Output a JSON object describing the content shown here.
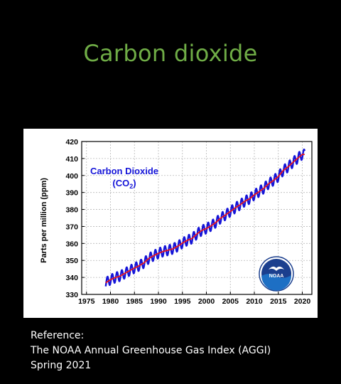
{
  "slide": {
    "title": "Carbon dioxide",
    "reference": {
      "line1": "Reference:",
      "line2": "The NOAA Annual Greenhouse Gas Index (AGGI)",
      "line3": "Spring 2021"
    }
  },
  "logo": {
    "text": "NOAA"
  },
  "chart_data": {
    "type": "line",
    "title": "Carbon Dioxide",
    "subtitle": "(CO",
    "subtitle_sub": "2",
    "subtitle_end": ")",
    "xlabel": "",
    "ylabel": "Parts per million (ppm)",
    "xlim": [
      1974,
      2022
    ],
    "ylim": [
      330,
      420
    ],
    "xticks": [
      1975,
      1980,
      1985,
      1990,
      1995,
      2000,
      2005,
      2010,
      2015,
      2020
    ],
    "yticks": [
      330,
      340,
      350,
      360,
      370,
      380,
      390,
      400,
      410,
      420
    ],
    "xticklabels": [
      "1975",
      "1980",
      "1985",
      "1990",
      "1995",
      "2000",
      "2005",
      "2010",
      "2015",
      "2020"
    ],
    "yticklabels": [
      "330",
      "340",
      "350",
      "360",
      "370",
      "380",
      "390",
      "400",
      "410",
      "420"
    ],
    "grid": true,
    "colors": {
      "monthly": "#1414d8",
      "trend": "#e8141e"
    },
    "seasonal_amplitude_ppm": 3,
    "series": [
      {
        "style": "monthly-seasonal",
        "x": [
          1979,
          1980,
          1981,
          1982,
          1983,
          1984,
          1985,
          1986,
          1987,
          1988,
          1989,
          1990,
          1991,
          1992,
          1993,
          1994,
          1995,
          1996,
          1997,
          1998,
          1999,
          2000,
          2001,
          2002,
          2003,
          2004,
          2005,
          2006,
          2007,
          2008,
          2009,
          2010,
          2011,
          2012,
          2013,
          2014,
          2015,
          2016,
          2017,
          2018,
          2019,
          2020
        ],
        "values": [
          336.8,
          338.7,
          339.9,
          340.8,
          342.4,
          344.0,
          345.5,
          346.9,
          348.6,
          351.2,
          352.8,
          354.2,
          355.3,
          356.0,
          356.8,
          358.3,
          360.2,
          361.8,
          362.9,
          365.5,
          367.6,
          368.8,
          370.4,
          372.4,
          374.9,
          376.8,
          378.8,
          380.9,
          382.7,
          384.8,
          386.3,
          388.6,
          390.5,
          392.5,
          395.2,
          397.1,
          399.4,
          402.9,
          405.0,
          407.6,
          410.1,
          412.4
        ]
      },
      {
        "style": "trend",
        "x": [
          1979,
          1980,
          1981,
          1982,
          1983,
          1984,
          1985,
          1986,
          1987,
          1988,
          1989,
          1990,
          1991,
          1992,
          1993,
          1994,
          1995,
          1996,
          1997,
          1998,
          1999,
          2000,
          2001,
          2002,
          2003,
          2004,
          2005,
          2006,
          2007,
          2008,
          2009,
          2010,
          2011,
          2012,
          2013,
          2014,
          2015,
          2016,
          2017,
          2018,
          2019,
          2020
        ],
        "values": [
          336.8,
          338.7,
          339.9,
          340.8,
          342.4,
          344.0,
          345.5,
          346.9,
          348.6,
          351.2,
          352.8,
          354.2,
          355.3,
          356.0,
          356.8,
          358.3,
          360.2,
          361.8,
          362.9,
          365.5,
          367.6,
          368.8,
          370.4,
          372.4,
          374.9,
          376.8,
          378.8,
          380.9,
          382.7,
          384.8,
          386.3,
          388.6,
          390.5,
          392.5,
          395.2,
          397.1,
          399.4,
          402.9,
          405.0,
          407.6,
          410.1,
          412.4
        ]
      }
    ]
  }
}
